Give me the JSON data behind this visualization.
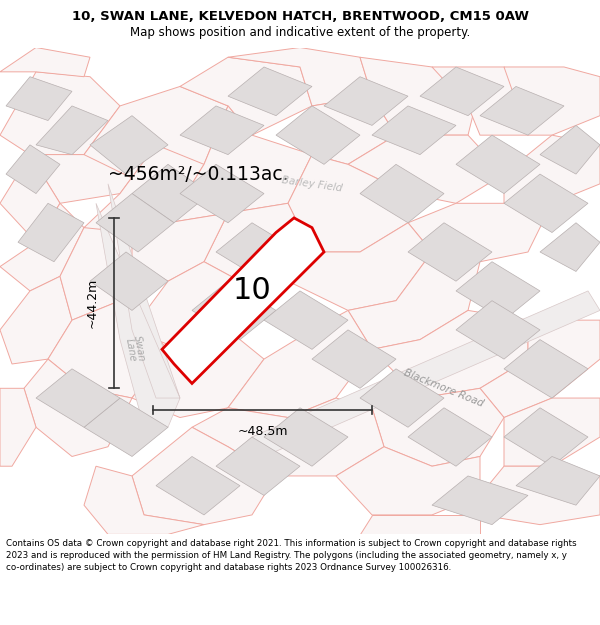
{
  "title": "10, SWAN LANE, KELVEDON HATCH, BRENTWOOD, CM15 0AW",
  "subtitle": "Map shows position and indicative extent of the property.",
  "footer": "Contains OS data © Crown copyright and database right 2021. This information is subject to Crown copyright and database rights 2023 and is reproduced with the permission of HM Land Registry. The polygons (including the associated geometry, namely x, y co-ordinates) are subject to Crown copyright and database rights 2023 Ordnance Survey 100026316.",
  "title_fontsize": 9.5,
  "subtitle_fontsize": 8.5,
  "property_label": "10",
  "area_text": "~456m²/~0.113ac.",
  "dim_h_label": "~44.2m",
  "dim_w_label": "~48.5m",
  "road_label_swan": "Swan\nLane",
  "road_label_blackmore": "Blackmore Road",
  "road_label_barley": "Barley Field",
  "property_color": "#dd0000",
  "property_fill": "white",
  "building_fill": "#e0dcdc",
  "building_edge": "#b8b0b0",
  "cadastral_color": "#f0a8a0",
  "road_fill": "#f5f0f0",
  "map_bg": "#faf8f8",
  "dim_line_color": "#333333",
  "label_gray": "#999999"
}
